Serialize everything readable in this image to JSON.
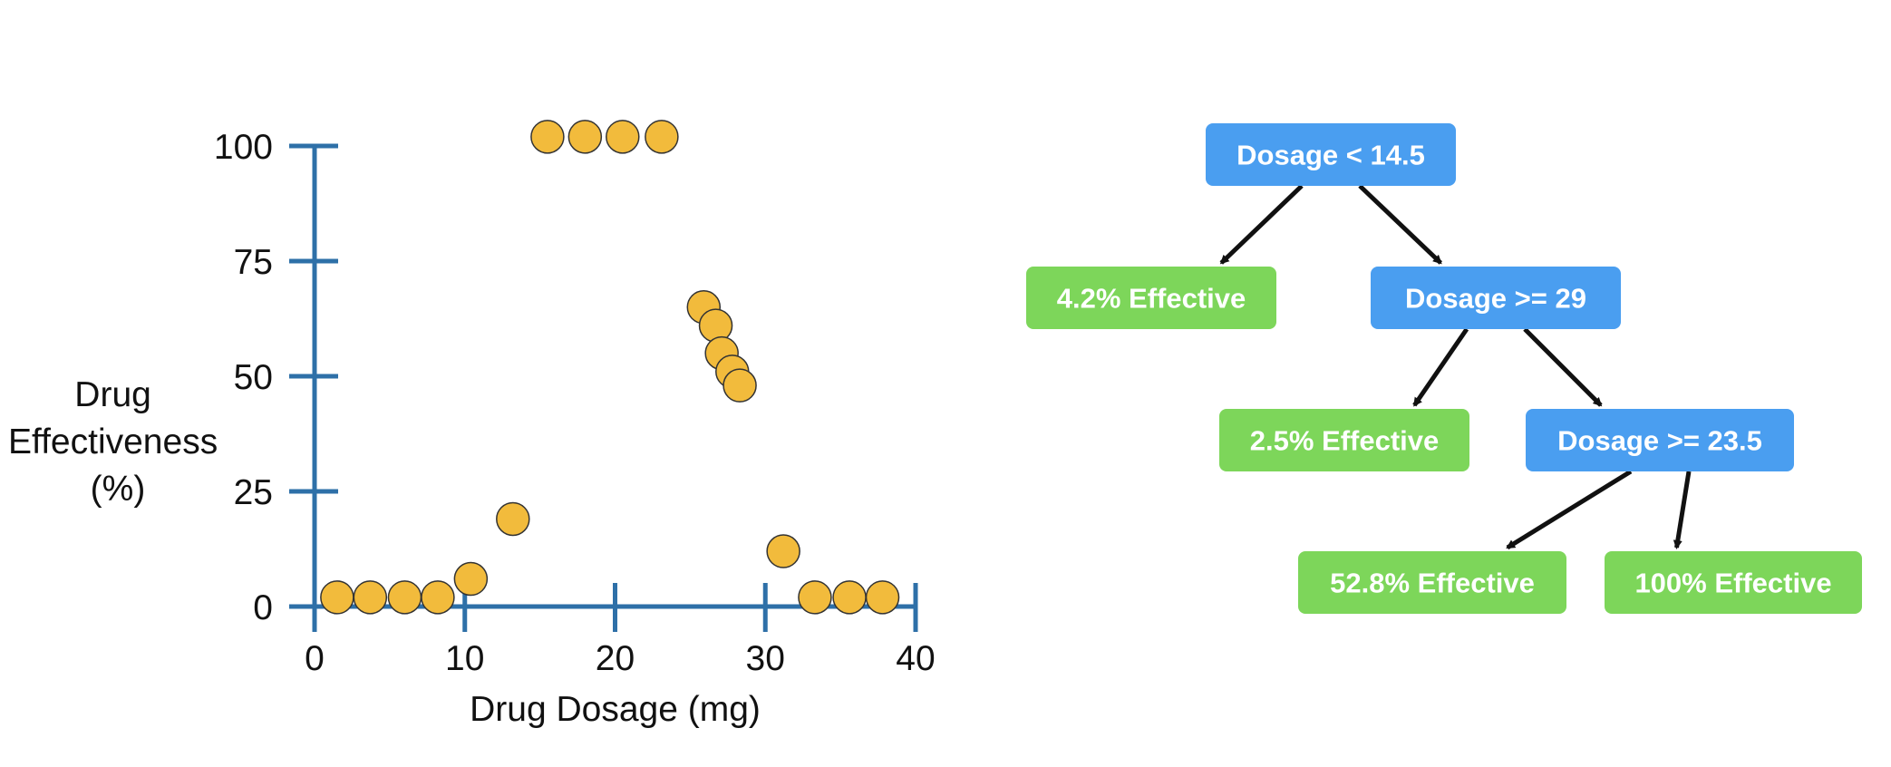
{
  "colors": {
    "axis": "#2e70a8",
    "point_fill": "#f2bb3c",
    "point_stroke": "#333333",
    "decision_node": "#4a9ef0",
    "leaf_node": "#7dd65a",
    "edge": "#111111"
  },
  "chart_data": {
    "type": "scatter",
    "xlabel": "Drug Dosage (mg)",
    "ylabel_lines": [
      "Drug",
      "Effectiveness",
      "(%)"
    ],
    "xlim": [
      0,
      40
    ],
    "ylim": [
      0,
      100
    ],
    "x_ticks": [
      0,
      10,
      20,
      30,
      40
    ],
    "y_ticks": [
      0,
      25,
      50,
      75,
      100
    ],
    "x_tick_labels": [
      "0",
      "10",
      "20",
      "30",
      "40"
    ],
    "y_tick_labels": [
      "0",
      "25",
      "50",
      "75",
      "100"
    ],
    "points": [
      {
        "x": 1.5,
        "y": 2
      },
      {
        "x": 3.7,
        "y": 2
      },
      {
        "x": 6.0,
        "y": 2
      },
      {
        "x": 8.2,
        "y": 2
      },
      {
        "x": 10.4,
        "y": 6
      },
      {
        "x": 13.2,
        "y": 19
      },
      {
        "x": 15.5,
        "y": 102
      },
      {
        "x": 18.0,
        "y": 102
      },
      {
        "x": 20.5,
        "y": 102
      },
      {
        "x": 23.1,
        "y": 102
      },
      {
        "x": 25.9,
        "y": 65
      },
      {
        "x": 26.7,
        "y": 61
      },
      {
        "x": 27.1,
        "y": 55
      },
      {
        "x": 27.8,
        "y": 51
      },
      {
        "x": 28.3,
        "y": 48
      },
      {
        "x": 31.2,
        "y": 12
      },
      {
        "x": 33.3,
        "y": 2
      },
      {
        "x": 35.6,
        "y": 2
      },
      {
        "x": 37.8,
        "y": 2
      }
    ]
  },
  "tree": {
    "nodes": [
      {
        "id": "root",
        "kind": "decision",
        "label": "Dosage < 14.5"
      },
      {
        "id": "leaf1",
        "kind": "leaf",
        "label": "4.2% Effective"
      },
      {
        "id": "split2",
        "kind": "decision",
        "label": "Dosage >= 29"
      },
      {
        "id": "leaf2",
        "kind": "leaf",
        "label": "2.5% Effective"
      },
      {
        "id": "split3",
        "kind": "decision",
        "label": "Dosage >= 23.5"
      },
      {
        "id": "leaf3",
        "kind": "leaf",
        "label": "52.8% Effective"
      },
      {
        "id": "leaf4",
        "kind": "leaf",
        "label": "100% Effective"
      }
    ],
    "edges": [
      {
        "from": "root",
        "to": "leaf1"
      },
      {
        "from": "root",
        "to": "split2"
      },
      {
        "from": "split2",
        "to": "leaf2"
      },
      {
        "from": "split2",
        "to": "split3"
      },
      {
        "from": "split3",
        "to": "leaf3"
      },
      {
        "from": "split3",
        "to": "leaf4"
      }
    ]
  }
}
